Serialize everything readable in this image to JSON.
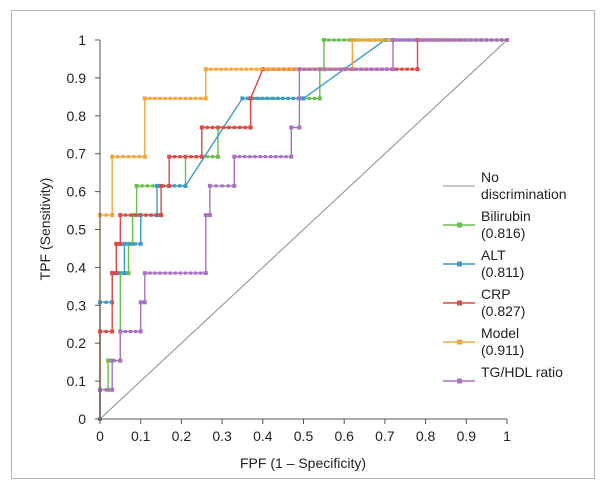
{
  "chart_data": {
    "type": "line",
    "title": "",
    "xlabel": "FPF (1 – Specificity)",
    "ylabel": "TPF (Sensitivity)",
    "xlim": [
      0,
      1
    ],
    "ylim": [
      0,
      1
    ],
    "x_ticks": [
      "0",
      "0.1",
      "0.2",
      "0.3",
      "0.4",
      "0.5",
      "0.6",
      "0.7",
      "0.8",
      "0.9",
      "1"
    ],
    "y_ticks": [
      "0",
      "0.1",
      "0.2",
      "0.3",
      "0.4",
      "0.5",
      "0.6",
      "0.7",
      "0.8",
      "0.9",
      "1"
    ],
    "grid": false,
    "legend_position": "right",
    "reference": {
      "name": "No discrimination",
      "legend_lines": [
        "No",
        "discrimination"
      ],
      "color": "#8c8c8c",
      "points": [
        [
          0,
          0
        ],
        [
          1,
          1
        ]
      ]
    },
    "series": [
      {
        "name": "Bilirubin (0.816)",
        "legend_lines": [
          "Bilirubin",
          "(0.816)"
        ],
        "color": "#6abf4b",
        "points": [
          [
            0,
            0
          ],
          [
            0,
            0.077
          ],
          [
            0.02,
            0.077
          ],
          [
            0.02,
            0.154
          ],
          [
            0.05,
            0.154
          ],
          [
            0.05,
            0.385
          ],
          [
            0.07,
            0.385
          ],
          [
            0.07,
            0.462
          ],
          [
            0.08,
            0.462
          ],
          [
            0.08,
            0.538
          ],
          [
            0.09,
            0.538
          ],
          [
            0.09,
            0.615
          ],
          [
            0.21,
            0.615
          ],
          [
            0.21,
            0.692
          ],
          [
            0.29,
            0.692
          ],
          [
            0.29,
            0.769
          ],
          [
            0.37,
            0.769
          ],
          [
            0.37,
            0.846
          ],
          [
            0.54,
            0.846
          ],
          [
            0.54,
            0.923
          ],
          [
            0.55,
            0.923
          ],
          [
            0.55,
            1
          ],
          [
            1,
            1
          ]
        ]
      },
      {
        "name": "ALT (0.811)",
        "legend_lines": [
          "ALT",
          "(0.811)"
        ],
        "color": "#3d9ad1",
        "points": [
          [
            0,
            0
          ],
          [
            0,
            0.308
          ],
          [
            0.03,
            0.308
          ],
          [
            0.03,
            0.385
          ],
          [
            0.06,
            0.385
          ],
          [
            0.06,
            0.462
          ],
          [
            0.1,
            0.462
          ],
          [
            0.1,
            0.538
          ],
          [
            0.14,
            0.538
          ],
          [
            0.14,
            0.615
          ],
          [
            0.21,
            0.615
          ],
          [
            0.21,
            0.615
          ],
          [
            0.35,
            0.846
          ],
          [
            0.5,
            0.846
          ],
          [
            0.5,
            0.846
          ],
          [
            0.6,
            0.923
          ],
          [
            0.7,
            1
          ],
          [
            1,
            1
          ]
        ]
      },
      {
        "name": "CRP (0.827)",
        "legend_lines": [
          "CRP",
          "(0.827)"
        ],
        "color": "#e04747",
        "points": [
          [
            0,
            0
          ],
          [
            0,
            0.231
          ],
          [
            0.03,
            0.231
          ],
          [
            0.03,
            0.385
          ],
          [
            0.04,
            0.385
          ],
          [
            0.04,
            0.462
          ],
          [
            0.05,
            0.462
          ],
          [
            0.05,
            0.538
          ],
          [
            0.15,
            0.538
          ],
          [
            0.15,
            0.615
          ],
          [
            0.17,
            0.615
          ],
          [
            0.17,
            0.692
          ],
          [
            0.25,
            0.692
          ],
          [
            0.25,
            0.769
          ],
          [
            0.37,
            0.769
          ],
          [
            0.37,
            0.846
          ],
          [
            0.4,
            0.923
          ],
          [
            0.78,
            0.923
          ],
          [
            0.78,
            1
          ],
          [
            1,
            1
          ]
        ]
      },
      {
        "name": "Model (0.911)",
        "legend_lines": [
          "Model",
          "(0.911)"
        ],
        "color": "#f5a53a",
        "points": [
          [
            0,
            0
          ],
          [
            0,
            0.538
          ],
          [
            0.03,
            0.538
          ],
          [
            0.03,
            0.692
          ],
          [
            0.11,
            0.692
          ],
          [
            0.11,
            0.846
          ],
          [
            0.26,
            0.846
          ],
          [
            0.26,
            0.923
          ],
          [
            0.62,
            0.923
          ],
          [
            0.62,
            1
          ],
          [
            1,
            1
          ]
        ]
      },
      {
        "name": "TG/HDL ratio",
        "legend_lines": [
          "TG/HDL ratio"
        ],
        "color": "#a872c2",
        "points": [
          [
            0,
            0
          ],
          [
            0,
            0.077
          ],
          [
            0.03,
            0.077
          ],
          [
            0.03,
            0.154
          ],
          [
            0.05,
            0.154
          ],
          [
            0.05,
            0.231
          ],
          [
            0.1,
            0.231
          ],
          [
            0.1,
            0.308
          ],
          [
            0.11,
            0.308
          ],
          [
            0.11,
            0.385
          ],
          [
            0.26,
            0.385
          ],
          [
            0.26,
            0.538
          ],
          [
            0.27,
            0.538
          ],
          [
            0.27,
            0.615
          ],
          [
            0.33,
            0.615
          ],
          [
            0.33,
            0.692
          ],
          [
            0.47,
            0.692
          ],
          [
            0.47,
            0.769
          ],
          [
            0.49,
            0.769
          ],
          [
            0.49,
            0.846
          ],
          [
            0.49,
            0.923
          ],
          [
            0.72,
            0.923
          ],
          [
            0.72,
            1
          ],
          [
            1,
            1
          ]
        ]
      }
    ]
  }
}
